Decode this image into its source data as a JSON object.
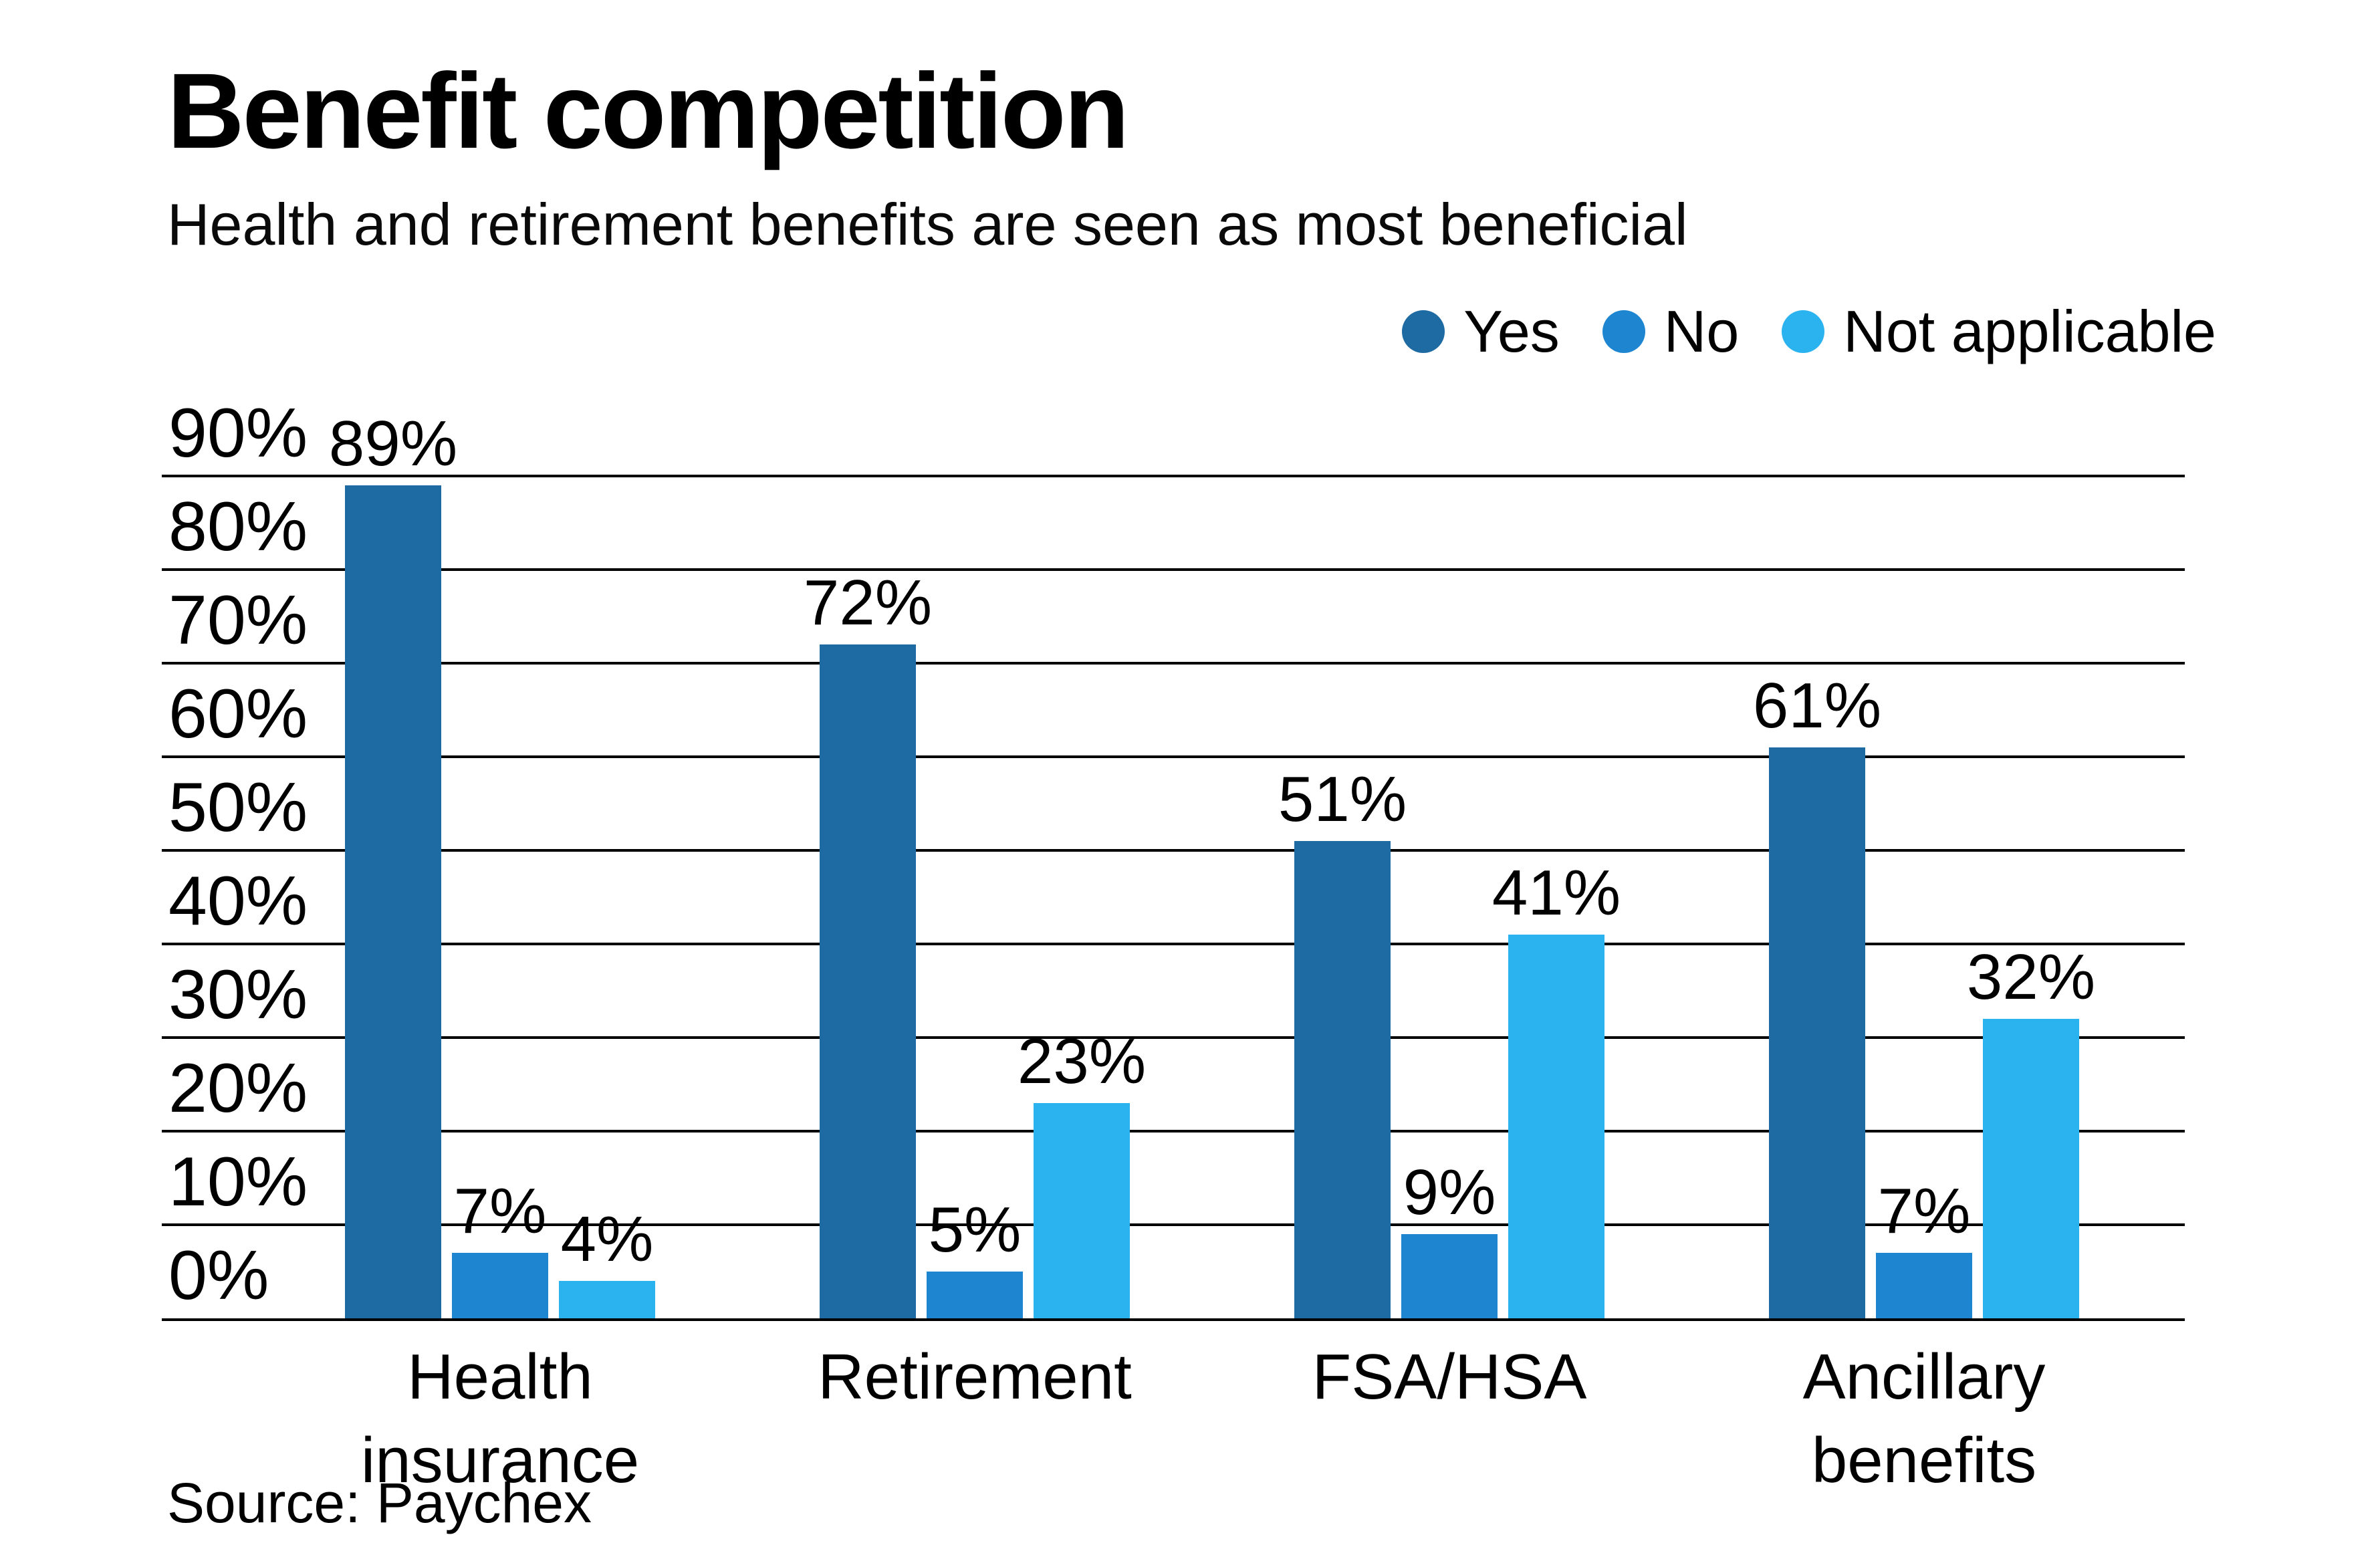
{
  "chart_data": {
    "type": "bar",
    "title": "Benefit competition",
    "subtitle": "Health and retirement benefits are seen as most beneficial",
    "source": "Source: Paychex",
    "categories": [
      "Health\ninsurance",
      "Retirement",
      "FSA/HSA",
      "Ancillary\nbenefits"
    ],
    "series": [
      {
        "name": "Yes",
        "color": "#1e6aa3",
        "values": [
          89,
          72,
          51,
          61
        ]
      },
      {
        "name": "No",
        "color": "#1e86d0",
        "values": [
          7,
          5,
          9,
          7
        ]
      },
      {
        "name": "Not applicable",
        "color": "#2ab3ef",
        "values": [
          4,
          23,
          41,
          32
        ]
      }
    ],
    "value_suffix": "%",
    "ylim": [
      0,
      90
    ],
    "ytick_step": 10,
    "ytick_labels": [
      "0%",
      "10%",
      "20%",
      "30%",
      "40%",
      "50%",
      "60%",
      "70%",
      "80%",
      "90%"
    ],
    "grid": true,
    "grid_color": "#000000",
    "legend_position": "top-right",
    "legend_shape": "circle"
  }
}
